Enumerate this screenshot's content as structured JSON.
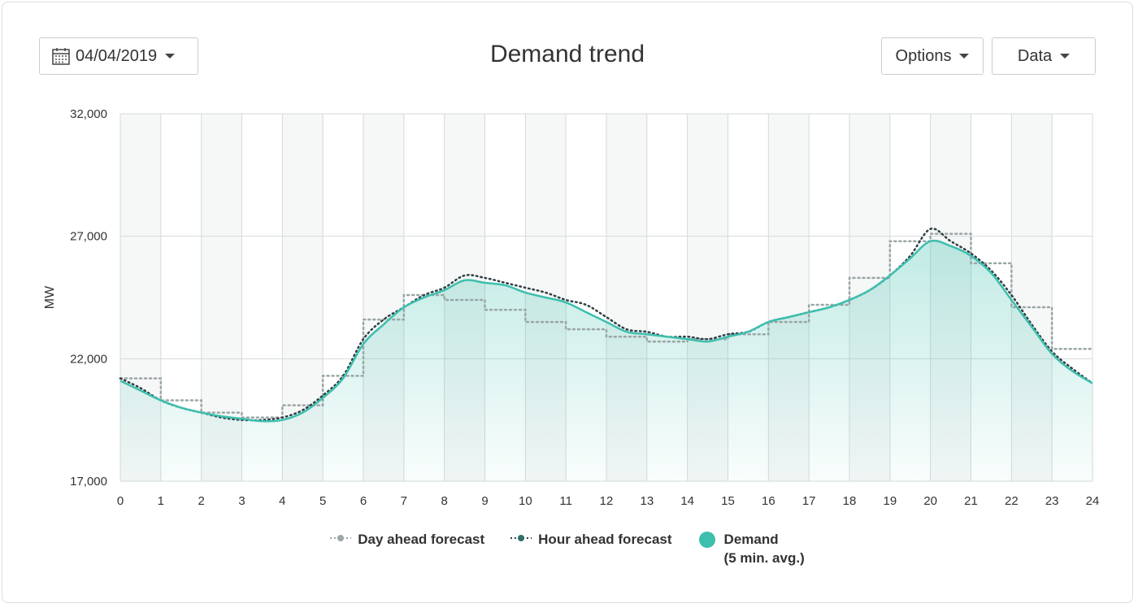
{
  "header": {
    "date_value": "04/04/2019",
    "title": "Demand trend",
    "options_label": "Options",
    "data_label": "Data"
  },
  "colors": {
    "demand": "#3dbfad",
    "day_ahead": "#9aa6a8",
    "hour_ahead": "#2f3f44",
    "grid": "#d4dadb",
    "band": "#f6f7f7"
  },
  "chart_data": {
    "type": "line",
    "title": "Demand trend",
    "xlabel": "",
    "ylabel": "MW",
    "xlim": [
      0,
      24
    ],
    "ylim": [
      17000,
      32000
    ],
    "x_ticks": [
      "0",
      "1",
      "2",
      "3",
      "4",
      "5",
      "6",
      "7",
      "8",
      "9",
      "10",
      "11",
      "12",
      "13",
      "14",
      "15",
      "16",
      "17",
      "18",
      "19",
      "20",
      "21",
      "22",
      "23",
      "24"
    ],
    "y_ticks": [
      "17,000",
      "22,000",
      "27,000",
      "32,000"
    ],
    "y_tick_values": [
      17000,
      22000,
      27000,
      32000
    ],
    "grid": true,
    "legend_position": "bottom",
    "series": [
      {
        "name": "Day ahead forecast",
        "style": "dotted-step",
        "hourly_values": [
          21200,
          20300,
          19800,
          19600,
          20100,
          21300,
          23600,
          24600,
          24400,
          24000,
          23500,
          23200,
          22900,
          22700,
          22800,
          23000,
          23500,
          24200,
          25300,
          26800,
          27100,
          25900,
          24100,
          22400
        ]
      },
      {
        "name": "Hour ahead forecast",
        "style": "dotted",
        "x": [
          0,
          0.5,
          1,
          1.5,
          2,
          2.5,
          3,
          3.5,
          4,
          4.5,
          5,
          5.5,
          6,
          6.5,
          7,
          7.5,
          8,
          8.5,
          9,
          9.5,
          10,
          10.5,
          11,
          11.5,
          12,
          12.5,
          13,
          13.5,
          14,
          14.5,
          15,
          15.5,
          16,
          16.5,
          17,
          17.5,
          18,
          18.5,
          19,
          19.5,
          20,
          20.5,
          21,
          21.5,
          22,
          22.5,
          23,
          23.5,
          24
        ],
        "values": [
          21200,
          20800,
          20300,
          20000,
          19800,
          19600,
          19500,
          19500,
          19600,
          19900,
          20500,
          21300,
          22800,
          23600,
          24100,
          24600,
          24900,
          25400,
          25300,
          25100,
          24900,
          24700,
          24400,
          24200,
          23700,
          23200,
          23100,
          22900,
          22900,
          22800,
          23000,
          23100,
          23500,
          23700,
          23900,
          24100,
          24400,
          24800,
          25400,
          26200,
          27300,
          26800,
          26300,
          25600,
          24600,
          23400,
          22300,
          21600,
          21000
        ]
      },
      {
        "name": "Demand",
        "name_sub": "(5 min. avg.)",
        "style": "solid-area",
        "x": [
          0,
          0.5,
          1,
          1.5,
          2,
          2.5,
          3,
          3.5,
          4,
          4.5,
          5,
          5.5,
          6,
          6.5,
          7,
          7.5,
          8,
          8.5,
          9,
          9.5,
          10,
          10.5,
          11,
          11.5,
          12,
          12.5,
          13,
          13.5,
          14,
          14.5,
          15,
          15.5,
          16,
          16.5,
          17,
          17.5,
          18,
          18.5,
          19,
          19.5,
          20,
          20.5,
          21,
          21.5,
          22,
          22.5,
          23,
          23.5,
          24
        ],
        "values": [
          21100,
          20700,
          20300,
          20000,
          19800,
          19650,
          19550,
          19450,
          19500,
          19800,
          20400,
          21200,
          22600,
          23400,
          24100,
          24500,
          24800,
          25200,
          25100,
          25000,
          24700,
          24500,
          24300,
          23900,
          23500,
          23100,
          23000,
          22900,
          22800,
          22700,
          22900,
          23100,
          23500,
          23700,
          23900,
          24100,
          24400,
          24800,
          25400,
          26100,
          26800,
          26600,
          26200,
          25500,
          24400,
          23300,
          22200,
          21500,
          21000
        ]
      }
    ]
  }
}
